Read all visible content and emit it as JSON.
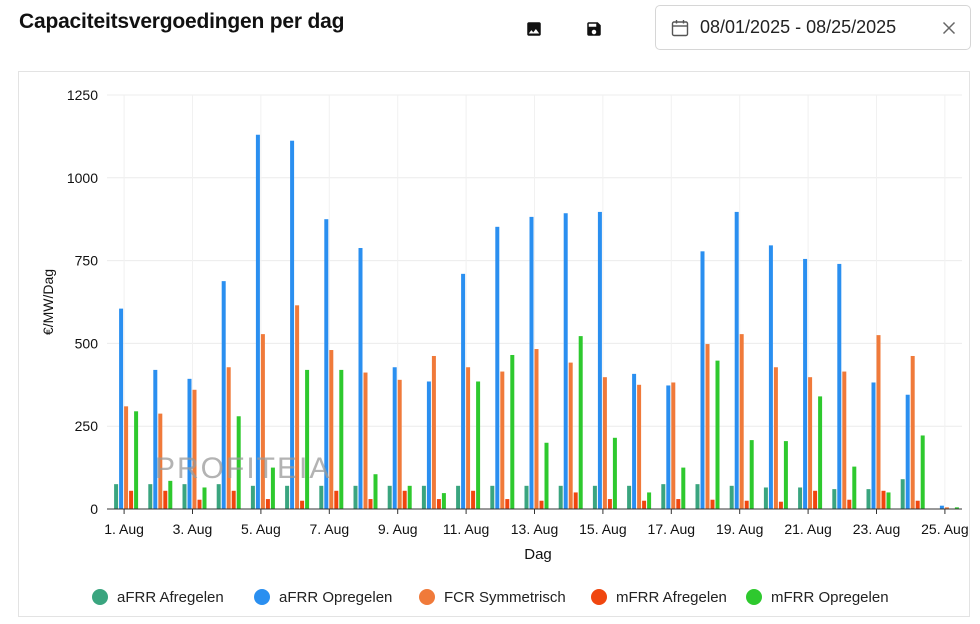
{
  "header": {
    "title": "Capaciteitsvergoedingen per dag",
    "date_range": "08/01/2025 - 08/25/2025"
  },
  "watermark": "PROFITEIA",
  "colors": {
    "aFRR Afregelen": "#3aa57f",
    "aFRR Opregelen": "#2a8ff0",
    "FCR Symmetrisch": "#f07a3a",
    "mFRR Afregelen": "#f0460f",
    "mFRR Opregelen": "#2ec92e"
  },
  "chart_data": {
    "type": "bar",
    "title": "",
    "xlabel": "Dag",
    "ylabel": "€/MW/Dag",
    "ylim": [
      0,
      1250
    ],
    "yticks": [
      "0",
      "250",
      "500",
      "750",
      "1000",
      "1250"
    ],
    "grid": true,
    "legend_position": "bottom",
    "categories": [
      "1. Aug",
      "2. Aug",
      "3. Aug",
      "4. Aug",
      "5. Aug",
      "6. Aug",
      "7. Aug",
      "8. Aug",
      "9. Aug",
      "10. Aug",
      "11. Aug",
      "12. Aug",
      "13. Aug",
      "14. Aug",
      "15. Aug",
      "16. Aug",
      "17. Aug",
      "18. Aug",
      "19. Aug",
      "20. Aug",
      "21. Aug",
      "22. Aug",
      "23. Aug",
      "24. Aug",
      "25. Aug"
    ],
    "xtick_labels": [
      "1. Aug",
      "",
      "3. Aug",
      "",
      "5. Aug",
      "",
      "7. Aug",
      "",
      "9. Aug",
      "",
      "11. Aug",
      "",
      "13. Aug",
      "",
      "15. Aug",
      "",
      "17. Aug",
      "",
      "19. Aug",
      "",
      "21. Aug",
      "",
      "23. Aug",
      "",
      "25. Aug"
    ],
    "series": [
      {
        "name": "aFRR Afregelen",
        "values": [
          75,
          75,
          75,
          75,
          70,
          70,
          70,
          70,
          70,
          70,
          70,
          70,
          70,
          70,
          70,
          70,
          75,
          75,
          70,
          65,
          65,
          60,
          60,
          90,
          0
        ]
      },
      {
        "name": "aFRR Opregelen",
        "values": [
          605,
          420,
          393,
          688,
          1130,
          1112,
          875,
          788,
          428,
          385,
          710,
          852,
          882,
          893,
          897,
          408,
          373,
          778,
          897,
          796,
          755,
          740,
          382,
          345,
          10
        ]
      },
      {
        "name": "FCR Symmetrisch",
        "values": [
          310,
          288,
          360,
          428,
          528,
          615,
          480,
          412,
          390,
          462,
          428,
          415,
          483,
          442,
          398,
          375,
          382,
          498,
          528,
          428,
          398,
          415,
          525,
          462,
          5
        ]
      },
      {
        "name": "mFRR Afregelen",
        "values": [
          55,
          55,
          28,
          55,
          30,
          25,
          55,
          30,
          55,
          30,
          55,
          30,
          25,
          50,
          30,
          25,
          30,
          28,
          25,
          22,
          55,
          28,
          55,
          25,
          0
        ]
      },
      {
        "name": "mFRR Opregelen",
        "values": [
          295,
          85,
          65,
          280,
          125,
          420,
          420,
          105,
          70,
          48,
          385,
          465,
          200,
          522,
          215,
          50,
          125,
          448,
          208,
          205,
          340,
          128,
          50,
          222,
          5
        ]
      }
    ]
  }
}
